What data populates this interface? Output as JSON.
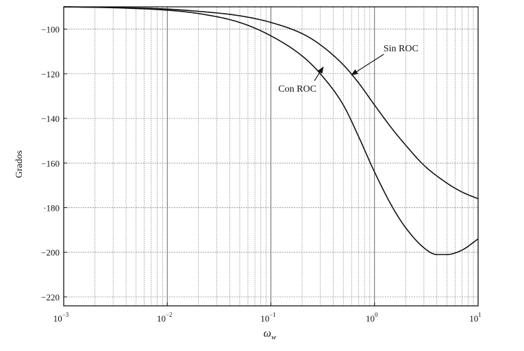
{
  "chart_data": {
    "type": "line",
    "title": "",
    "xlabel": "ω",
    "xlabel_sub": "w",
    "ylabel": "Grados",
    "xscale": "log",
    "xlim": [
      0.001,
      10
    ],
    "ylim": [
      -224,
      -90
    ],
    "x_ticks": [
      {
        "mantissa": "10",
        "exp": "−3",
        "value": 0.001
      },
      {
        "mantissa": "10",
        "exp": "−2",
        "value": 0.01
      },
      {
        "mantissa": "10",
        "exp": "−1",
        "value": 0.1
      },
      {
        "mantissa": "10",
        "exp": "0",
        "value": 1
      },
      {
        "mantissa": "10",
        "exp": "1",
        "value": 10
      }
    ],
    "y_ticks": [
      {
        "label": "−100",
        "value": -100
      },
      {
        "label": "−120",
        "value": -120
      },
      {
        "label": "−140",
        "value": -140
      },
      {
        "label": "−160",
        "value": -160
      },
      {
        "label": "·180",
        "value": -180
      },
      {
        "label": "−200",
        "value": -200
      },
      {
        "label": "−220",
        "value": -220
      }
    ],
    "grid": true,
    "series": [
      {
        "name": "Sin ROC",
        "x": [
          0.001,
          0.003,
          0.01,
          0.02,
          0.05,
          0.1,
          0.2,
          0.3,
          0.5,
          0.7,
          1.0,
          1.5,
          2,
          3,
          5,
          7,
          10
        ],
        "y": [
          -90,
          -90.3,
          -91,
          -92,
          -94,
          -97,
          -102,
          -107,
          -116,
          -124,
          -134,
          -145,
          -152,
          -161,
          -169,
          -173,
          -176
        ]
      },
      {
        "name": "Con ROC",
        "x": [
          0.001,
          0.003,
          0.01,
          0.02,
          0.05,
          0.1,
          0.2,
          0.3,
          0.5,
          0.7,
          1.0,
          1.5,
          2,
          3,
          4,
          5,
          7,
          10
        ],
        "y": [
          -90,
          -90.4,
          -91.5,
          -93,
          -97,
          -103,
          -112,
          -120,
          -134,
          -148,
          -164,
          -180,
          -189,
          -198,
          -201,
          -201,
          -199,
          -194
        ]
      }
    ],
    "annotations": [
      {
        "text": "Sin ROC",
        "series": "Sin ROC",
        "text_x": 1.8,
        "text_y": -110,
        "arrow_to_x": 0.6,
        "arrow_to_y": -120.5
      },
      {
        "text": "Con ROC",
        "series": "Con ROC",
        "text_x": 0.18,
        "text_y": -128,
        "arrow_to_x": 0.32,
        "arrow_to_y": -117
      }
    ]
  }
}
